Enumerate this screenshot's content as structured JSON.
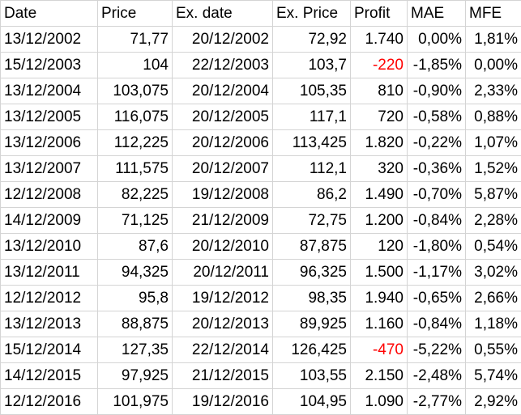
{
  "headers": [
    "Date",
    "Price",
    "Ex. date",
    "Ex. Price",
    "Profit",
    "MAE",
    "MFE"
  ],
  "rows": [
    {
      "date": "13/12/2002",
      "price": "71,77",
      "ex_date": "20/12/2002",
      "ex_price": "72,92",
      "profit": "1.740",
      "profit_negative": false,
      "mae": "0,00%",
      "mfe": "1,81%"
    },
    {
      "date": "15/12/2003",
      "price": "104",
      "ex_date": "22/12/2003",
      "ex_price": "103,7",
      "profit": "-220",
      "profit_negative": true,
      "mae": "-1,85%",
      "mfe": "0,00%"
    },
    {
      "date": "13/12/2004",
      "price": "103,075",
      "ex_date": "20/12/2004",
      "ex_price": "105,35",
      "profit": "810",
      "profit_negative": false,
      "mae": "-0,90%",
      "mfe": "2,33%"
    },
    {
      "date": "13/12/2005",
      "price": "116,075",
      "ex_date": "20/12/2005",
      "ex_price": "117,1",
      "profit": "720",
      "profit_negative": false,
      "mae": "-0,58%",
      "mfe": "0,88%"
    },
    {
      "date": "13/12/2006",
      "price": "112,225",
      "ex_date": "20/12/2006",
      "ex_price": "113,425",
      "profit": "1.820",
      "profit_negative": false,
      "mae": "-0,22%",
      "mfe": "1,07%"
    },
    {
      "date": "13/12/2007",
      "price": "111,575",
      "ex_date": "20/12/2007",
      "ex_price": "112,1",
      "profit": "320",
      "profit_negative": false,
      "mae": "-0,36%",
      "mfe": "1,52%"
    },
    {
      "date": "12/12/2008",
      "price": "82,225",
      "ex_date": "19/12/2008",
      "ex_price": "86,2",
      "profit": "1.490",
      "profit_negative": false,
      "mae": "-0,70%",
      "mfe": "5,87%"
    },
    {
      "date": "14/12/2009",
      "price": "71,125",
      "ex_date": "21/12/2009",
      "ex_price": "72,75",
      "profit": "1.200",
      "profit_negative": false,
      "mae": "-0,84%",
      "mfe": "2,28%"
    },
    {
      "date": "13/12/2010",
      "price": "87,6",
      "ex_date": "20/12/2010",
      "ex_price": "87,875",
      "profit": "120",
      "profit_negative": false,
      "mae": "-1,80%",
      "mfe": "0,54%"
    },
    {
      "date": "13/12/2011",
      "price": "94,325",
      "ex_date": "20/12/2011",
      "ex_price": "96,325",
      "profit": "1.500",
      "profit_negative": false,
      "mae": "-1,17%",
      "mfe": "3,02%"
    },
    {
      "date": "12/12/2012",
      "price": "95,8",
      "ex_date": "19/12/2012",
      "ex_price": "98,35",
      "profit": "1.940",
      "profit_negative": false,
      "mae": "-0,65%",
      "mfe": "2,66%"
    },
    {
      "date": "13/12/2013",
      "price": "88,875",
      "ex_date": "20/12/2013",
      "ex_price": "89,925",
      "profit": "1.160",
      "profit_negative": false,
      "mae": "-0,84%",
      "mfe": "1,18%"
    },
    {
      "date": "15/12/2014",
      "price": "127,35",
      "ex_date": "22/12/2014",
      "ex_price": "126,425",
      "profit": "-470",
      "profit_negative": true,
      "mae": "-5,22%",
      "mfe": "0,55%"
    },
    {
      "date": "14/12/2015",
      "price": "97,925",
      "ex_date": "21/12/2015",
      "ex_price": "103,55",
      "profit": "2.150",
      "profit_negative": false,
      "mae": "-2,48%",
      "mfe": "5,74%"
    },
    {
      "date": "12/12/2016",
      "price": "101,975",
      "ex_date": "19/12/2016",
      "ex_price": "104,95",
      "profit": "1.090",
      "profit_negative": false,
      "mae": "-2,77%",
      "mfe": "2,92%"
    }
  ],
  "colors": {
    "negative_profit": "#ff0000",
    "gridline": "#d4d4d4"
  }
}
